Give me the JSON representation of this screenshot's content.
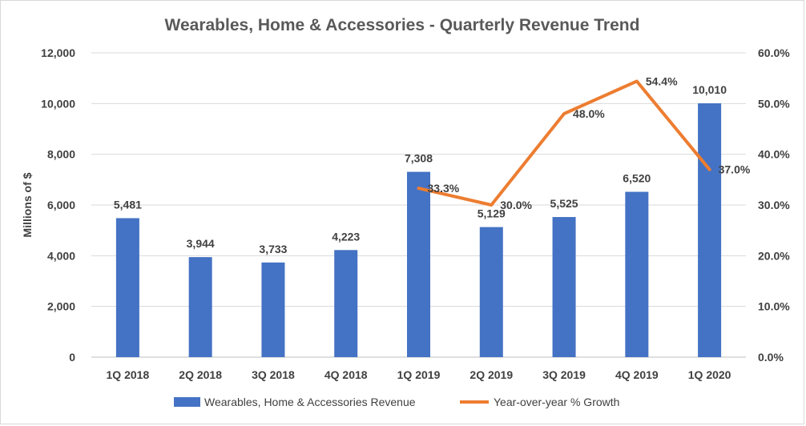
{
  "chart_data": {
    "type": "bar+line",
    "title": "Wearables, Home & Accessories - Quarterly Revenue Trend",
    "ylabel": "Millions of $",
    "categories": [
      "1Q 2018",
      "2Q 2018",
      "3Q 2018",
      "4Q 2018",
      "1Q 2019",
      "2Q 2019",
      "3Q 2019",
      "4Q 2019",
      "1Q 2020"
    ],
    "y_ticks": [
      "0",
      "2,000",
      "4,000",
      "6,000",
      "8,000",
      "10,000",
      "12,000"
    ],
    "ylim": [
      0,
      12000
    ],
    "y2_ticks": [
      "0.0%",
      "10.0%",
      "20.0%",
      "30.0%",
      "40.0%",
      "50.0%",
      "60.0%"
    ],
    "y2lim": [
      0,
      60
    ],
    "grid": true,
    "legend_position": "bottom",
    "series": [
      {
        "name": "Wearables, Home & Accessories Revenue",
        "type": "bar",
        "axis": "left",
        "color": "#4472C4",
        "values": [
          5481,
          3944,
          3733,
          4223,
          7308,
          5129,
          5525,
          6520,
          10010
        ],
        "labels": [
          "5,481",
          "3,944",
          "3,733",
          "4,223",
          "7,308",
          "5,129",
          "5,525",
          "6,520",
          "10,010"
        ]
      },
      {
        "name": "Year-over-year % Growth",
        "type": "line",
        "axis": "right",
        "color": "#ED7D31",
        "values": [
          null,
          null,
          null,
          null,
          33.3,
          30.0,
          48.0,
          54.4,
          37.0
        ],
        "labels": [
          "",
          "",
          "",
          "",
          "33.3%",
          "30.0%",
          "48.0%",
          "54.4%",
          "37.0%"
        ]
      }
    ]
  }
}
